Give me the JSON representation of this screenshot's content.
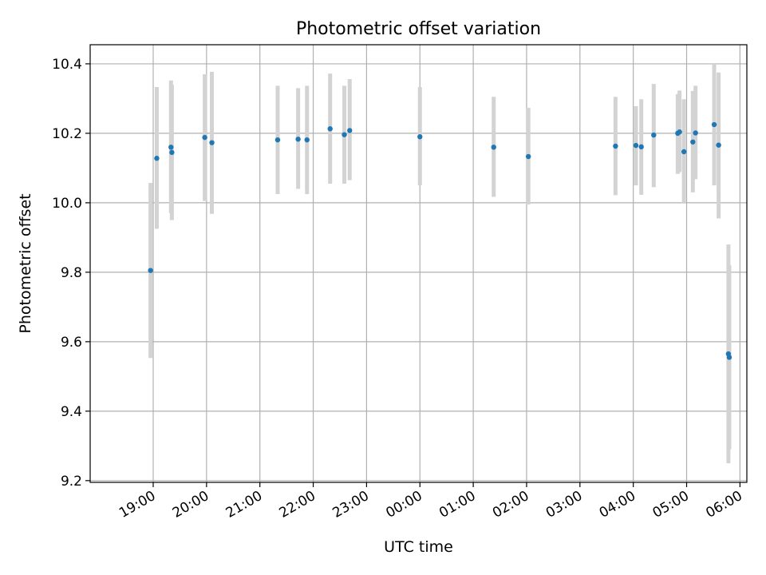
{
  "chart_data": {
    "type": "scatter",
    "title": "Photometric offset variation",
    "xlabel": "UTC time",
    "ylabel": "Photometric offset",
    "grid": true,
    "x_ticks": [
      "19:00",
      "20:00",
      "21:00",
      "22:00",
      "23:00",
      "00:00",
      "01:00",
      "02:00",
      "03:00",
      "04:00",
      "05:00",
      "06:00"
    ],
    "y_ticks": [
      "9.2",
      "9.4",
      "9.6",
      "9.8",
      "10.0",
      "10.2",
      "10.4"
    ],
    "ylim": [
      9.195,
      10.455
    ],
    "xlim": [
      "18:25",
      "05:48"
    ],
    "colors": {
      "points": "#1f77b4",
      "errorbars": "#d3d3d3",
      "grid": "#b0b0b0"
    },
    "points": [
      {
        "t": "18:57",
        "y": 9.805,
        "lo": 9.553,
        "hi": 10.057
      },
      {
        "t": "19:04",
        "y": 10.128,
        "lo": 9.925,
        "hi": 10.333
      },
      {
        "t": "19:20",
        "y": 10.16,
        "lo": 9.97,
        "hi": 10.352
      },
      {
        "t": "19:21",
        "y": 10.145,
        "lo": 9.95,
        "hi": 10.34
      },
      {
        "t": "19:58",
        "y": 10.188,
        "lo": 10.005,
        "hi": 10.37
      },
      {
        "t": "20:06",
        "y": 10.173,
        "lo": 9.968,
        "hi": 10.377
      },
      {
        "t": "21:20",
        "y": 10.181,
        "lo": 10.025,
        "hi": 10.337
      },
      {
        "t": "21:43",
        "y": 10.183,
        "lo": 10.04,
        "hi": 10.33
      },
      {
        "t": "21:53",
        "y": 10.181,
        "lo": 10.025,
        "hi": 10.337
      },
      {
        "t": "22:19",
        "y": 10.213,
        "lo": 10.055,
        "hi": 10.372
      },
      {
        "t": "22:35",
        "y": 10.196,
        "lo": 10.055,
        "hi": 10.337
      },
      {
        "t": "22:41",
        "y": 10.208,
        "lo": 10.065,
        "hi": 10.356
      },
      {
        "t": "00:00",
        "y": 10.19,
        "lo": 10.05,
        "hi": 10.333
      },
      {
        "t": "01:23",
        "y": 10.16,
        "lo": 10.017,
        "hi": 10.305
      },
      {
        "t": "02:02",
        "y": 10.133,
        "lo": 9.995,
        "hi": 10.273
      },
      {
        "t": "03:40",
        "y": 10.163,
        "lo": 10.022,
        "hi": 10.305
      },
      {
        "t": "04:03",
        "y": 10.165,
        "lo": 10.05,
        "hi": 10.278
      },
      {
        "t": "04:09",
        "y": 10.161,
        "lo": 10.023,
        "hi": 10.298
      },
      {
        "t": "04:23",
        "y": 10.195,
        "lo": 10.045,
        "hi": 10.342
      },
      {
        "t": "04:50",
        "y": 10.2,
        "lo": 10.083,
        "hi": 10.313
      },
      {
        "t": "04:52",
        "y": 10.204,
        "lo": 10.088,
        "hi": 10.323
      },
      {
        "t": "04:57",
        "y": 10.147,
        "lo": 10.0,
        "hi": 10.298
      },
      {
        "t": "05:07",
        "y": 10.175,
        "lo": 10.03,
        "hi": 10.322
      },
      {
        "t": "05:10",
        "y": 10.201,
        "lo": 10.068,
        "hi": 10.337
      },
      {
        "t": "05:31",
        "y": 10.225,
        "lo": 10.05,
        "hi": 10.4
      },
      {
        "t": "05:36",
        "y": 10.166,
        "lo": 9.955,
        "hi": 10.375
      },
      {
        "t": "05:47",
        "y": 9.565,
        "lo": 9.25,
        "hi": 9.88
      },
      {
        "t": "05:48",
        "y": 9.555,
        "lo": 9.29,
        "hi": 9.82
      }
    ]
  }
}
